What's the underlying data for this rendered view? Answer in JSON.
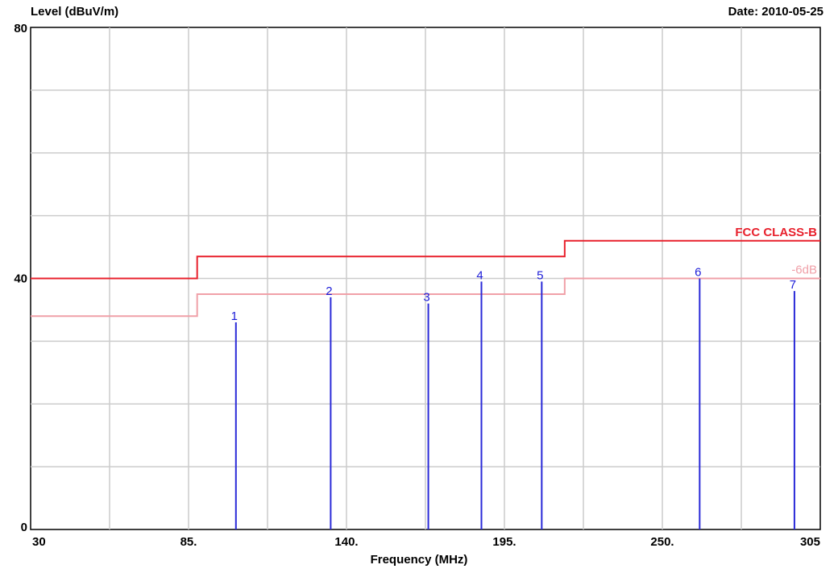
{
  "header": {
    "y_title": "Level (dBuV/m)",
    "date": "Date: 2010-05-25"
  },
  "colors": {
    "limit": "#e8202c",
    "margin": "#f0a0a8",
    "marker": "#2a2ad8",
    "grid": "#cccccc"
  },
  "chart_data": {
    "type": "line",
    "xlabel": "Frequency (MHz)",
    "ylabel": "Level (dBuV/m)",
    "xlim": [
      30,
      305
    ],
    "ylim": [
      0,
      80
    ],
    "x_ticks": [
      {
        "value": 30,
        "label": "30"
      },
      {
        "value": 85,
        "label": "85."
      },
      {
        "value": 140,
        "label": "140."
      },
      {
        "value": 195,
        "label": "195."
      },
      {
        "value": 250,
        "label": "250."
      },
      {
        "value": 305,
        "label": "305"
      }
    ],
    "y_ticks": [
      {
        "value": 0,
        "label": "0"
      },
      {
        "value": 40,
        "label": "40"
      },
      {
        "value": 80,
        "label": "80"
      }
    ],
    "grid": true,
    "limit_lines": [
      {
        "name": "FCC CLASS-B",
        "points": [
          [
            30,
            40
          ],
          [
            88,
            40
          ],
          [
            88,
            43.5
          ],
          [
            216,
            43.5
          ],
          [
            216,
            46
          ],
          [
            305,
            46
          ]
        ]
      },
      {
        "name": "-6dB",
        "points": [
          [
            30,
            34
          ],
          [
            88,
            34
          ],
          [
            88,
            37.5
          ],
          [
            216,
            37.5
          ],
          [
            216,
            40
          ],
          [
            305,
            40
          ]
        ]
      }
    ],
    "markers": [
      {
        "label": "1",
        "x": 101.5,
        "y": 33
      },
      {
        "label": "2",
        "x": 134.5,
        "y": 37
      },
      {
        "label": "3",
        "x": 168.5,
        "y": 36
      },
      {
        "label": "4",
        "x": 187,
        "y": 39.5
      },
      {
        "label": "5",
        "x": 208,
        "y": 39.5
      },
      {
        "label": "6",
        "x": 263,
        "y": 40
      },
      {
        "label": "7",
        "x": 296,
        "y": 38
      }
    ]
  }
}
